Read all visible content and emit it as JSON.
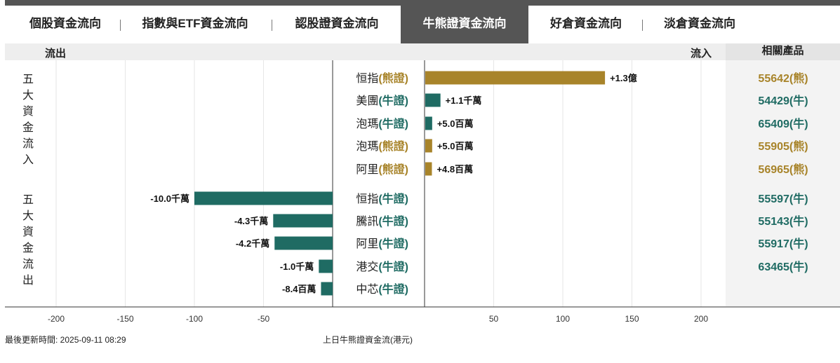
{
  "tabs": [
    {
      "label": "個股資金流向",
      "active": false
    },
    {
      "label": "指數與ETF資金流向",
      "active": false
    },
    {
      "label": "認股證資金流向",
      "active": false
    },
    {
      "label": "牛熊證資金流向",
      "active": true
    },
    {
      "label": "好倉資金流向",
      "active": false
    },
    {
      "label": "淡倉資金流向",
      "active": false
    }
  ],
  "header": {
    "outflow_label": "流出",
    "inflow_label": "流入",
    "related_label": "相關產品"
  },
  "colors": {
    "bull": "#1f6b63",
    "bear": "#a8842a",
    "dark_tab": "#555555"
  },
  "chart_data": {
    "type": "bar",
    "orientation": "horizontal-diverging",
    "title": "上日牛熊證資金流(港元)",
    "unit": "百萬港元",
    "xlim": [
      -200,
      200
    ],
    "x_ticks_left": [
      -200,
      -150,
      -100,
      -50
    ],
    "x_ticks_right": [
      50,
      100,
      150,
      200
    ],
    "groups": [
      {
        "name": "五大資金流入",
        "items": [
          {
            "stock": "恒指",
            "type": "熊證",
            "value": 130,
            "label": "+1.3億",
            "product_code": "55642",
            "product_type": "熊"
          },
          {
            "stock": "美團",
            "type": "牛證",
            "value": 11,
            "label": "+1.1千萬",
            "product_code": "54429",
            "product_type": "牛"
          },
          {
            "stock": "泡瑪",
            "type": "牛證",
            "value": 5.0,
            "label": "+5.0百萬",
            "product_code": "65409",
            "product_type": "牛"
          },
          {
            "stock": "泡瑪",
            "type": "熊證",
            "value": 5.0,
            "label": "+5.0百萬",
            "product_code": "55905",
            "product_type": "熊"
          },
          {
            "stock": "阿里",
            "type": "熊證",
            "value": 4.8,
            "label": "+4.8百萬",
            "product_code": "56965",
            "product_type": "熊"
          }
        ]
      },
      {
        "name": "五大資金流出",
        "items": [
          {
            "stock": "恒指",
            "type": "牛證",
            "value": -100,
            "label": "-10.0千萬",
            "product_code": "55597",
            "product_type": "牛"
          },
          {
            "stock": "騰訊",
            "type": "牛證",
            "value": -43,
            "label": "-4.3千萬",
            "product_code": "55143",
            "product_type": "牛"
          },
          {
            "stock": "阿里",
            "type": "牛證",
            "value": -42,
            "label": "-4.2千萬",
            "product_code": "55917",
            "product_type": "牛"
          },
          {
            "stock": "港交",
            "type": "牛證",
            "value": -10,
            "label": "-1.0千萬",
            "product_code": "63465",
            "product_type": "牛"
          },
          {
            "stock": "中芯",
            "type": "牛證",
            "value": -8.4,
            "label": "-8.4百萬",
            "product_code": "",
            "product_type": "牛"
          }
        ]
      }
    ]
  },
  "footer": {
    "updated": "最後更新時間: 2025-09-11 08:29",
    "caption": "上日牛熊證資金流(港元)"
  }
}
